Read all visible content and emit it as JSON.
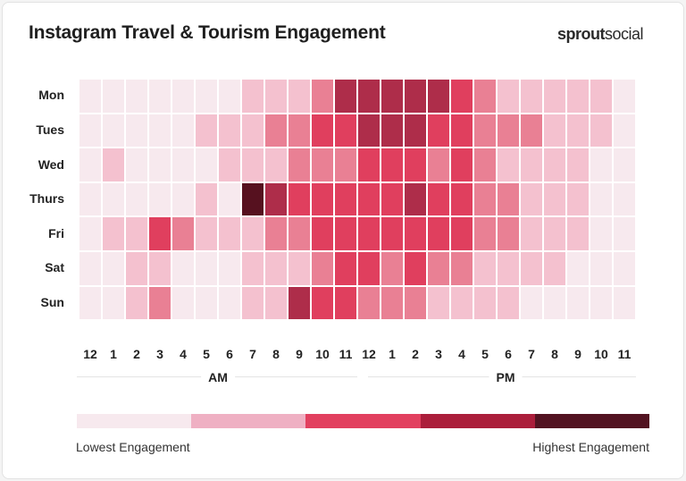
{
  "title": "Instagram Travel & Tourism Engagement",
  "logo": {
    "bold": "sprout",
    "light": "social"
  },
  "chart_data": {
    "type": "heatmap",
    "title": "Instagram Travel & Tourism Engagement",
    "rows": [
      "Mon",
      "Tues",
      "Wed",
      "Thurs",
      "Fri",
      "Sat",
      "Sun"
    ],
    "columns": [
      "12",
      "1",
      "2",
      "3",
      "4",
      "5",
      "6",
      "7",
      "8",
      "9",
      "10",
      "11",
      "12",
      "1",
      "2",
      "3",
      "4",
      "5",
      "6",
      "7",
      "8",
      "9",
      "10",
      "11"
    ],
    "periods": [
      "AM",
      "PM"
    ],
    "scale_levels": 6,
    "values": [
      [
        0,
        0,
        0,
        0,
        0,
        0,
        0,
        1,
        1,
        1,
        2,
        4,
        4,
        4,
        4,
        4,
        3,
        2,
        1,
        1,
        1,
        1,
        1,
        0
      ],
      [
        0,
        0,
        0,
        0,
        0,
        1,
        1,
        1,
        2,
        2,
        3,
        3,
        4,
        4,
        4,
        3,
        3,
        2,
        2,
        2,
        1,
        1,
        1,
        0
      ],
      [
        0,
        1,
        0,
        0,
        0,
        0,
        1,
        1,
        1,
        2,
        2,
        2,
        3,
        3,
        3,
        2,
        3,
        2,
        1,
        1,
        1,
        1,
        0,
        0
      ],
      [
        0,
        0,
        0,
        0,
        0,
        1,
        0,
        5,
        4,
        3,
        3,
        3,
        3,
        3,
        4,
        3,
        3,
        2,
        2,
        1,
        1,
        1,
        0,
        0
      ],
      [
        0,
        1,
        1,
        3,
        2,
        1,
        1,
        1,
        2,
        2,
        3,
        3,
        3,
        3,
        3,
        3,
        3,
        2,
        2,
        1,
        1,
        1,
        0,
        0
      ],
      [
        0,
        0,
        1,
        1,
        0,
        0,
        0,
        1,
        1,
        1,
        2,
        3,
        3,
        2,
        3,
        2,
        2,
        1,
        1,
        1,
        1,
        0,
        0,
        0
      ],
      [
        0,
        0,
        1,
        2,
        0,
        0,
        0,
        1,
        1,
        4,
        3,
        3,
        2,
        2,
        2,
        1,
        1,
        1,
        1,
        0,
        0,
        0,
        0,
        0
      ]
    ],
    "level_colors": [
      "#f7e9ee",
      "#f4c1cf",
      "#e98094",
      "#e03f5e",
      "#ae2d4a",
      "#56111f"
    ],
    "legend": {
      "low_label": "Lowest Engagement",
      "high_label": "Highest Engagement",
      "colors": [
        "#f7e9ee",
        "#efb0c3",
        "#e2405f",
        "#ab1e3b",
        "#521321"
      ]
    }
  }
}
